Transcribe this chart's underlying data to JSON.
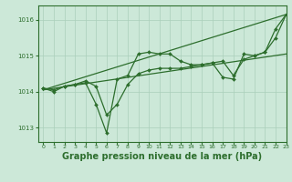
{
  "background_color": "#cce8d8",
  "grid_color": "#aacfba",
  "line_color": "#2d6e2d",
  "marker_color": "#2d6e2d",
  "xlabel": "Graphe pression niveau de la mer (hPa)",
  "xlabel_fontsize": 7.0,
  "xlim": [
    -0.5,
    23
  ],
  "ylim": [
    1012.6,
    1016.4
  ],
  "yticks": [
    1013,
    1014,
    1015,
    1016
  ],
  "xticks": [
    0,
    1,
    2,
    3,
    4,
    5,
    6,
    7,
    8,
    9,
    10,
    11,
    12,
    13,
    14,
    15,
    16,
    17,
    18,
    19,
    20,
    21,
    22,
    23
  ],
  "trend1_x": [
    0,
    23
  ],
  "trend1_y": [
    1014.05,
    1016.15
  ],
  "trend2_x": [
    0,
    23
  ],
  "trend2_y": [
    1014.05,
    1015.05
  ],
  "jagged": [
    1014.1,
    1014.0,
    1014.15,
    1014.2,
    1014.25,
    1013.65,
    1012.85,
    1014.35,
    1014.45,
    1015.05,
    1015.1,
    1015.05,
    1015.05,
    1014.85,
    1014.75,
    1014.75,
    1014.8,
    1014.4,
    1014.35,
    1015.05,
    1015.0,
    1015.1,
    1015.75,
    1016.15
  ],
  "smooth1": [
    1014.1,
    1014.05,
    1014.15,
    1014.2,
    1014.3,
    1014.15,
    1013.35,
    1013.65,
    1014.2,
    1014.5,
    1014.6,
    1014.65,
    1014.65,
    1014.65,
    1014.7,
    1014.75,
    1014.8,
    1014.85,
    1014.45,
    1014.9,
    1015.0,
    1015.1,
    1015.5,
    1016.15
  ]
}
